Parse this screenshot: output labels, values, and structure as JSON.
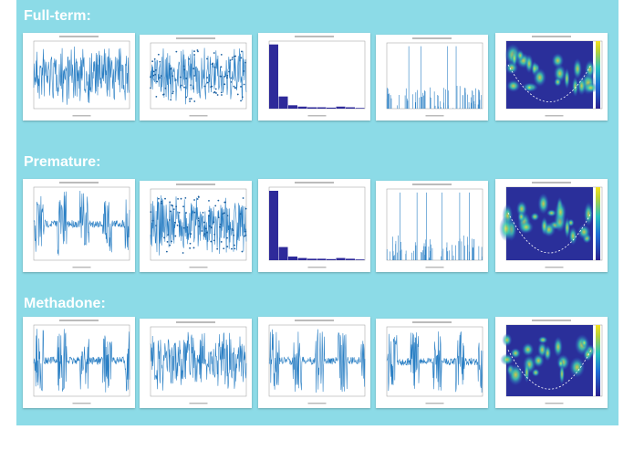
{
  "sections": [
    {
      "label": "Full-term:"
    },
    {
      "label": "Premature:"
    },
    {
      "label": "Methadone:"
    }
  ]
}
